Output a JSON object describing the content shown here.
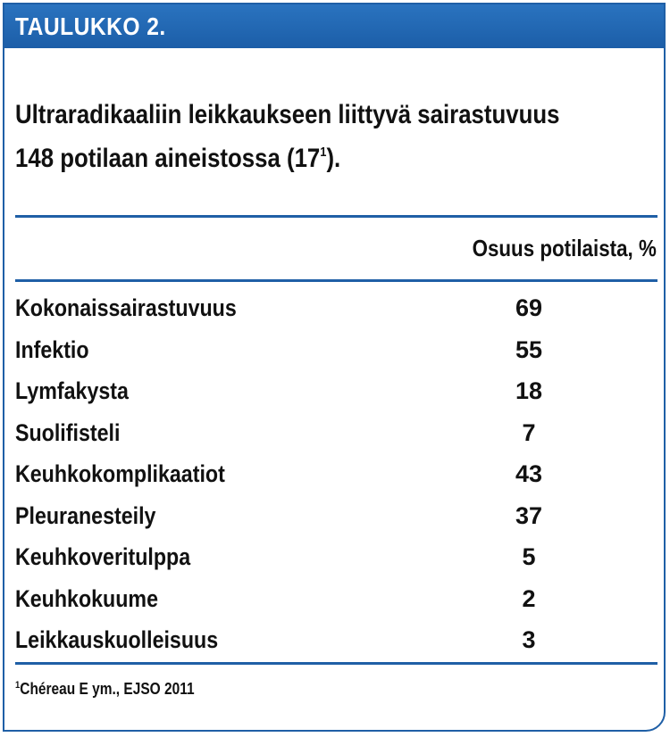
{
  "header": {
    "title": "TAULUKKO 2."
  },
  "table_title": {
    "main": "Ultraradikaaliin leikkaukseen liittyvä sairastuvuus 148 potilaan aineistossa (17",
    "ref": "1",
    "end": ")."
  },
  "column_header": "Osuus potilaista, %",
  "rows": [
    {
      "label": "Kokonaissairastuvuus",
      "value": "69"
    },
    {
      "label": "Infektio",
      "value": "55"
    },
    {
      "label": "Lymfakysta",
      "value": "18"
    },
    {
      "label": "Suolifisteli",
      "value": "7"
    },
    {
      "label": "Keuhkokomplikaatiot",
      "value": "43"
    },
    {
      "label": "Pleuranesteily",
      "value": "37"
    },
    {
      "label": "Keuhkoveritulppa",
      "value": "5"
    },
    {
      "label": "Keuhkokuume",
      "value": "2"
    },
    {
      "label": "Leikkauskuolleisuus",
      "value": "3"
    }
  ],
  "footnote": {
    "marker": "1",
    "text": "Chéreau E ym., EJSO 2011"
  },
  "colors": {
    "accent": "#1f5fa6",
    "header_text": "#ffffff"
  }
}
